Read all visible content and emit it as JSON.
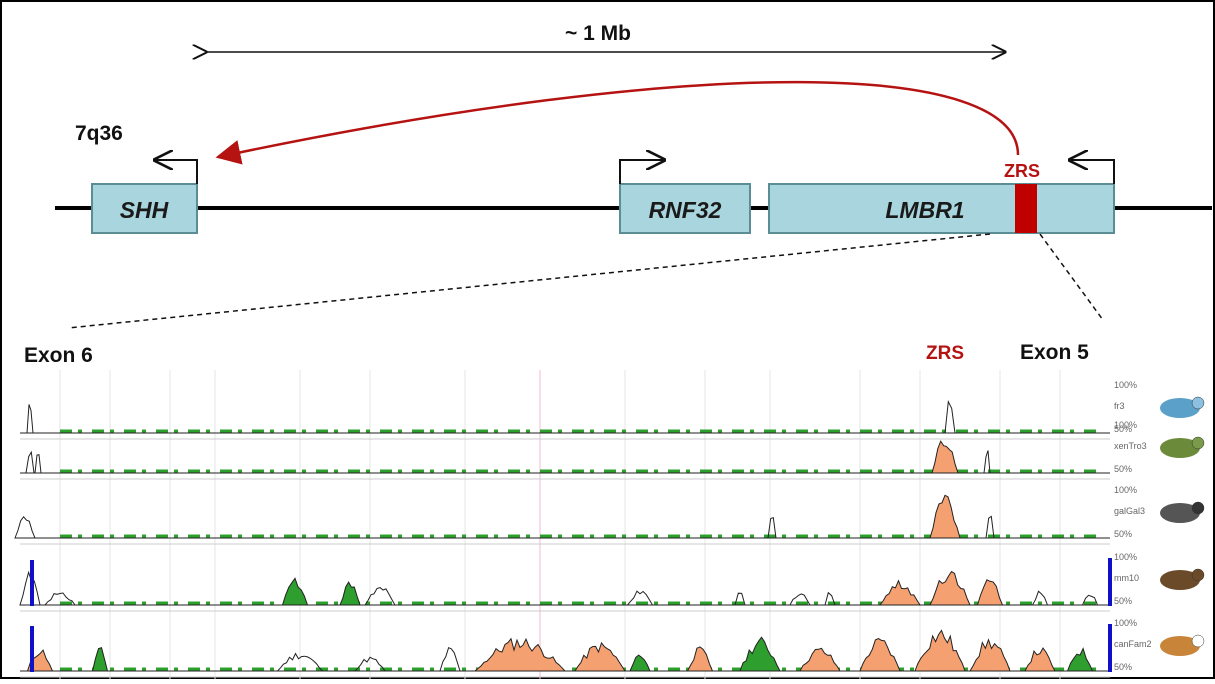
{
  "header": {
    "scale": "~ 1 Mb",
    "locus": "7q36"
  },
  "genes": [
    {
      "label": "SHH"
    },
    {
      "label": "RNF32"
    },
    {
      "label": "LMBR1"
    }
  ],
  "enhancer": "ZRS",
  "zoom": {
    "left_label": "Exon 6",
    "enhancer_label": "ZRS",
    "right_label": "Exon 5"
  },
  "tracks": [
    {
      "species": "fr3",
      "top": "100%",
      "bottom": "50%"
    },
    {
      "species": "xenTro3",
      "top": "100%",
      "bottom": "50%"
    },
    {
      "species": "galGal3",
      "top": "100%",
      "bottom": "50%"
    },
    {
      "species": "mm10",
      "top": "100%",
      "bottom": "50%"
    },
    {
      "species": "canFam2",
      "top": "100%",
      "bottom": "50%"
    }
  ]
}
